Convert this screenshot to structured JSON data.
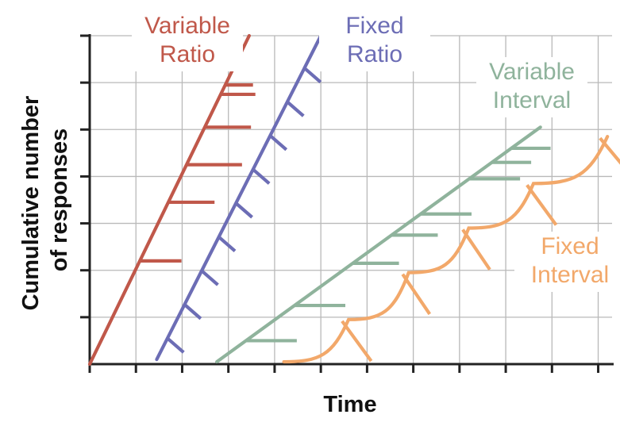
{
  "chart_data": {
    "type": "line",
    "title": "",
    "xlabel": "Time",
    "ylabel_lines": [
      "Cumulative number",
      "of responses"
    ],
    "grid": true,
    "x_ticks": 12,
    "y_ticks": 7,
    "xlim": [
      0,
      11.3
    ],
    "ylim": [
      0,
      7
    ],
    "series": [
      {
        "name_lines": [
          "Variable",
          "Ratio"
        ],
        "color": "#c0584a",
        "shape": "ratio-line",
        "x": [
          0,
          3.45
        ],
        "y": [
          0,
          7
        ],
        "marks": [
          {
            "y": 2.2,
            "len": 0.9
          },
          {
            "y": 3.45,
            "len": 1.0
          },
          {
            "y": 4.25,
            "len": 1.2
          },
          {
            "y": 5.05,
            "len": 1.0
          },
          {
            "y": 5.75,
            "len": 0.75
          },
          {
            "y": 5.95,
            "len": 0.6
          }
        ]
      },
      {
        "name_lines": [
          "Fixed",
          "Ratio"
        ],
        "color": "#6c6db5",
        "shape": "fixed-ratio",
        "x": [
          1.45,
          5.0
        ],
        "y": [
          0.1,
          7
        ],
        "marks_every": 0.72,
        "mark_dx": 0.35,
        "mark_dy": -0.3
      },
      {
        "name_lines": [
          "Variable",
          "Interval"
        ],
        "color": "#8fb39c",
        "shape": "ratio-line",
        "x": [
          2.75,
          9.75
        ],
        "y": [
          0.05,
          5.05
        ],
        "marks": [
          {
            "y": 0.5,
            "len": 1.1
          },
          {
            "y": 1.25,
            "len": 1.1
          },
          {
            "y": 2.15,
            "len": 1.0
          },
          {
            "y": 2.75,
            "len": 1.0
          },
          {
            "y": 3.2,
            "len": 1.1
          },
          {
            "y": 3.95,
            "len": 1.1
          },
          {
            "y": 4.3,
            "len": 0.85
          },
          {
            "y": 4.6,
            "len": 0.85
          }
        ]
      },
      {
        "name_lines": [
          "Fixed",
          "Interval"
        ],
        "color": "#f2a86a",
        "shape": "scallop",
        "start": [
          4.2,
          0.05
        ],
        "scallops": [
          {
            "x0": 4.2,
            "x1": 5.6,
            "y0": 0.05,
            "y1": 0.95
          },
          {
            "x0": 5.6,
            "x1": 6.9,
            "y0": 0.95,
            "y1": 1.95
          },
          {
            "x0": 6.9,
            "x1": 8.2,
            "y0": 1.95,
            "y1": 2.9
          },
          {
            "x0": 8.2,
            "x1": 9.6,
            "y0": 2.9,
            "y1": 3.85
          },
          {
            "x0": 9.6,
            "x1": 11.2,
            "y0": 3.85,
            "y1": 4.85
          }
        ]
      }
    ]
  }
}
